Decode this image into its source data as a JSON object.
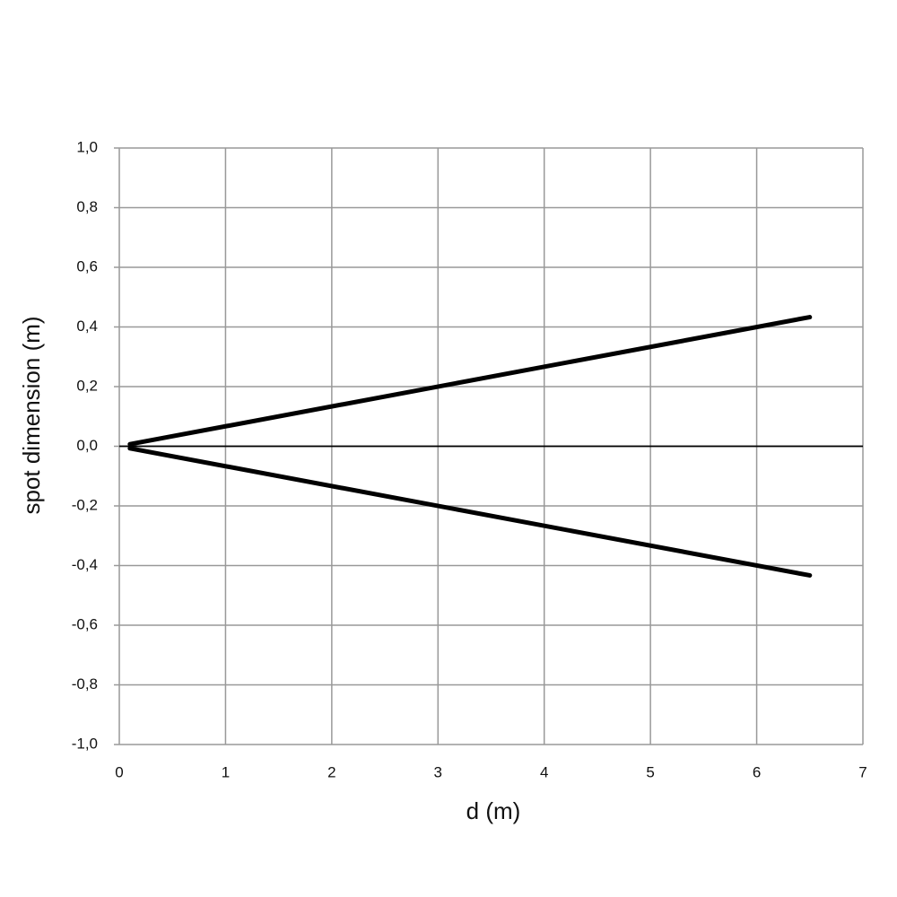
{
  "chart_data": {
    "type": "line",
    "xlabel": "d (m)",
    "ylabel": "spot dimension (m)",
    "x": [
      0.1,
      6.5
    ],
    "series": [
      {
        "color": "#000000",
        "values": [
          0.007,
          0.433
        ]
      },
      {
        "color": "#000000",
        "values": [
          -0.007,
          -0.433
        ]
      }
    ],
    "xlim": [
      0,
      7
    ],
    "xticks": [
      0,
      1,
      2,
      3,
      4,
      5,
      6,
      7
    ],
    "ylim": [
      -1,
      1
    ],
    "yticks": [
      {
        "value": -1,
        "label": "-1,0"
      },
      {
        "value": -0.8,
        "label": "-0,8"
      },
      {
        "value": -0.6,
        "label": "-0,6"
      },
      {
        "value": -0.4,
        "label": "-0,4"
      },
      {
        "value": -0.2,
        "label": "-0,2"
      },
      {
        "value": 0,
        "label": "0,0"
      },
      {
        "value": 0.2,
        "label": "0,2"
      },
      {
        "value": 0.4,
        "label": "0,4"
      },
      {
        "value": 0.6,
        "label": "0,6"
      },
      {
        "value": 0.8,
        "label": "0,8"
      },
      {
        "value": 1,
        "label": "1,0"
      }
    ],
    "grid": true
  }
}
